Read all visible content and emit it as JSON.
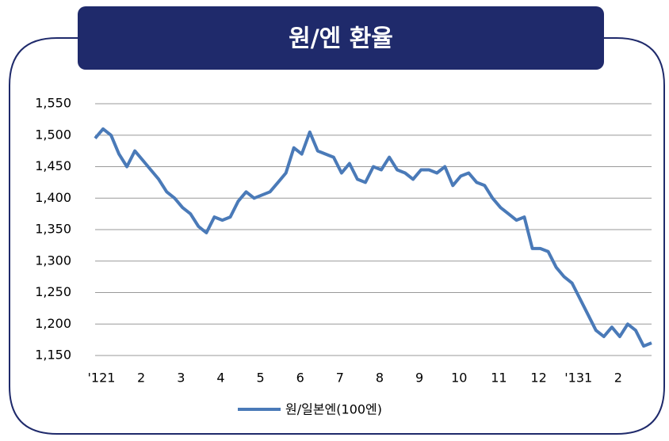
{
  "chart_data": {
    "type": "line",
    "title": "원/엔 환율",
    "categories": [
      "'121",
      null,
      null,
      null,
      null,
      "2",
      null,
      null,
      null,
      null,
      "3",
      null,
      null,
      null,
      null,
      "4",
      null,
      null,
      null,
      null,
      "5",
      null,
      null,
      null,
      null,
      "6",
      null,
      null,
      null,
      null,
      "7",
      null,
      null,
      null,
      null,
      "8",
      null,
      null,
      null,
      null,
      "9",
      null,
      null,
      null,
      null,
      "10",
      null,
      null,
      null,
      null,
      "11",
      null,
      null,
      null,
      null,
      "12",
      null,
      null,
      null,
      null,
      "'131",
      null,
      null,
      null,
      null,
      "2",
      null,
      null,
      null,
      null,
      null
    ],
    "series": [
      {
        "name": "원/일본엔(100엔)",
        "color": "#4a7ab8",
        "values": [
          1495,
          1510,
          1500,
          1470,
          1450,
          1475,
          1460,
          1445,
          1430,
          1410,
          1400,
          1385,
          1375,
          1355,
          1345,
          1370,
          1365,
          1370,
          1395,
          1410,
          1400,
          1405,
          1410,
          1425,
          1440,
          1480,
          1470,
          1505,
          1475,
          1470,
          1465,
          1440,
          1455,
          1430,
          1425,
          1450,
          1445,
          1465,
          1445,
          1440,
          1430,
          1445,
          1445,
          1440,
          1450,
          1420,
          1435,
          1440,
          1425,
          1420,
          1400,
          1385,
          1375,
          1365,
          1370,
          1320,
          1320,
          1315,
          1290,
          1275,
          1265,
          1240,
          1215,
          1190,
          1180,
          1195,
          1180,
          1200,
          1190,
          1165,
          1170
        ]
      }
    ],
    "ylim": [
      1150,
      1550
    ],
    "yticks": [
      {
        "value": 1150,
        "label": "1,150"
      },
      {
        "value": 1200,
        "label": "1,200"
      },
      {
        "value": 1250,
        "label": "1,250"
      },
      {
        "value": 1300,
        "label": "1,300"
      },
      {
        "value": 1350,
        "label": "1,350"
      },
      {
        "value": 1400,
        "label": "1,400"
      },
      {
        "value": 1450,
        "label": "1,450"
      },
      {
        "value": 1500,
        "label": "1,500"
      },
      {
        "value": 1550,
        "label": "1,550"
      }
    ],
    "grid": true
  }
}
